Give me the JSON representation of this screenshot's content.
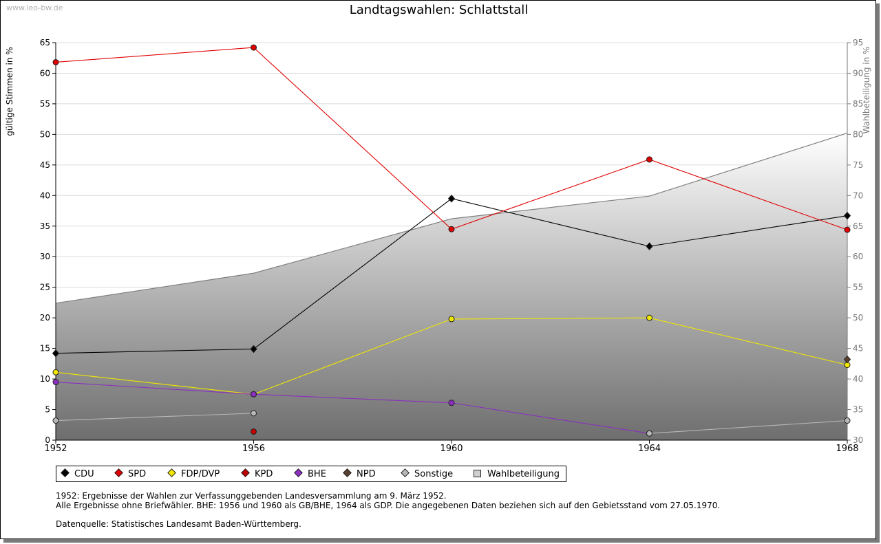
{
  "watermark": "www.leo-bw.de",
  "chart_data": {
    "type": "line",
    "title": "Landtagswahlen: Schlattstall",
    "ylabel": "gültige Stimmen in %",
    "y2label": "Wahlbeteiligung in %",
    "x": [
      1952,
      1956,
      1960,
      1964,
      1968
    ],
    "ylim": [
      0,
      65
    ],
    "yticks": [
      0,
      5,
      10,
      15,
      20,
      25,
      30,
      35,
      40,
      45,
      50,
      55,
      60,
      65
    ],
    "y2lim": [
      30,
      95
    ],
    "y2ticks": [
      30,
      35,
      40,
      45,
      50,
      55,
      60,
      65,
      70,
      75,
      80,
      85,
      90,
      95
    ],
    "grid": true,
    "legend_position": "bottom",
    "series": [
      {
        "name": "CDU",
        "color": "#000000",
        "values": [
          14.2,
          14.9,
          39.5,
          31.7,
          36.7
        ]
      },
      {
        "name": "SPD",
        "color": "#e00000",
        "values": [
          61.8,
          64.2,
          34.5,
          45.9,
          34.4
        ]
      },
      {
        "name": "FDP/DVP",
        "color": "#f0e800",
        "values": [
          11.1,
          7.5,
          19.8,
          20.0,
          12.3
        ]
      },
      {
        "name": "KPD",
        "color": "#c00000",
        "values": [
          null,
          1.4,
          null,
          null,
          null
        ]
      },
      {
        "name": "BHE",
        "color": "#8a2fc0",
        "values": [
          9.5,
          7.5,
          6.1,
          1.1,
          null
        ]
      },
      {
        "name": "NPD",
        "color": "#5a4030",
        "values": [
          null,
          null,
          null,
          null,
          13.2
        ]
      },
      {
        "name": "Sonstige",
        "color": "#b8b8b8",
        "values": [
          3.2,
          4.4,
          null,
          1.1,
          3.2
        ]
      },
      {
        "name": "Wahlbeteiligung",
        "color": "#7f7f7f",
        "axis": "right",
        "type": "area",
        "values": [
          52.4,
          57.3,
          66.2,
          69.9,
          80.2
        ]
      }
    ]
  },
  "notes": [
    "1952: Ergebnisse der Wahlen zur Verfassunggebenden Landesversammlung am 9. März 1952.",
    "Alle Ergebnisse ohne Briefwähler. BHE: 1956 und 1960 als GB/BHE, 1964 als GDP. Die angegebenen Daten beziehen sich auf den Gebietsstand vom 27.05.1970."
  ],
  "source": "Datenquelle: Statistisches Landesamt Baden-Württemberg."
}
